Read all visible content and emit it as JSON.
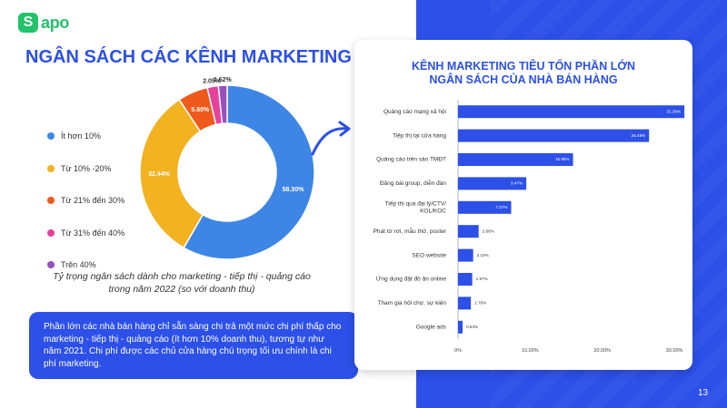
{
  "brand": {
    "name": "apo",
    "mark": "S"
  },
  "page_title": "NGÂN SÁCH CÁC KÊNH MARKETING",
  "page_number": "13",
  "colors": {
    "primary": "#2c50e8",
    "brand_green": "#22c36b"
  },
  "legend": [
    {
      "label": "Ít hơn 10%",
      "color": "#3d86e6"
    },
    {
      "label": "Từ 10% -20%",
      "color": "#f3b21f"
    },
    {
      "label": "Từ 21% đến 30%",
      "color": "#ef5a1c"
    },
    {
      "label": "Từ 31% đến 40%",
      "color": "#e8409b"
    },
    {
      "label": "Trên 40%",
      "color": "#9b4ec0"
    }
  ],
  "caption_line1": "Tỷ trọng ngân sách dành cho marketing - tiếp thị - quảng cáo",
  "caption_line2": "trong năm 2022 (so với doanh thu)",
  "note": "Phần lớn các nhà bán hàng chỉ sẵn sàng chi trả một mức chi phí thấp cho marketing - tiếp thị - quảng cáo (ít hơn 10% doanh thu), tương tự như năm 2021. Chi phí được các chủ cửa hàng chú trọng tối ưu chính là chi phí marketing.",
  "chart_data": [
    {
      "type": "pie",
      "donut": true,
      "categories": [
        "Ít hơn 10%",
        "Từ 10% -20%",
        "Từ 21% đến 30%",
        "Từ 31% đến 40%",
        "Trên 40%"
      ],
      "values": [
        58.3,
        32.44,
        5.6,
        2.05,
        1.62
      ],
      "labels": [
        "58.30%",
        "32.44%",
        "5.60%",
        "2.05%",
        "1.62%"
      ],
      "colors": [
        "#3d86e6",
        "#f3b21f",
        "#ef5a1c",
        "#e8409b",
        "#9b4ec0"
      ],
      "legend": "left"
    },
    {
      "type": "bar",
      "orientation": "horizontal",
      "title_line1": "KÊNH MARKETING TIÊU TỐN PHẦN LỚN",
      "title_line2": "NGÂN SÁCH CỦA NHÀ BÁN HÀNG",
      "categories": [
        [
          "Quảng cáo mạng xã hội"
        ],
        [
          "Tiếp thị tại cửa hàng"
        ],
        [
          "Quảng cáo trên sàn TMĐT"
        ],
        [
          "Đăng bài group, diễn đàn"
        ],
        [
          "Tiếp thị qua đại lý/CTV/",
          "KOL/KOC"
        ],
        [
          "Phát tờ rơi, mẫu thử, poster"
        ],
        [
          "SEO website"
        ],
        [
          "Ứng dụng đặt đồ ăn online"
        ],
        [
          "Tham gia hội chợ, sự kiện"
        ],
        [
          "Google ads"
        ]
      ],
      "values": [
        31.39,
        26.49,
        15.95,
        9.47,
        7.37,
        2.86,
        2.1,
        1.97,
        1.78,
        0.64
      ],
      "value_labels": [
        "31.39%",
        "26.49%",
        "15.95%",
        "9.47%",
        "7.37%",
        "2.86%",
        "2.10%",
        "1.97%",
        "1.78%",
        "0.64%"
      ],
      "xlim": [
        0,
        30
      ],
      "xticks": [
        0,
        10,
        20,
        30
      ],
      "xtick_labels": [
        "0%",
        "10.00%",
        "20.00%",
        "30.00%"
      ],
      "bar_color": "#2c50e8"
    }
  ]
}
